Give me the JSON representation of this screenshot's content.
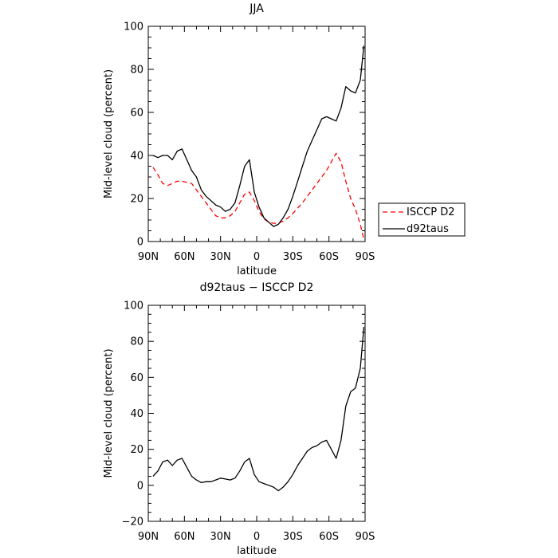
{
  "chart_data": [
    {
      "type": "line",
      "title": "JJA",
      "xlabel": "latitude",
      "ylabel": "Mid-level cloud (percent)",
      "xlim": [
        90,
        -90
      ],
      "ylim": [
        0,
        100
      ],
      "x_ticks": [
        90,
        60,
        30,
        0,
        -30,
        -60,
        -90
      ],
      "x_tick_labels": [
        "90N",
        "60N",
        "30N",
        "0",
        "30S",
        "60S",
        "90S"
      ],
      "y_ticks": [
        0,
        20,
        40,
        60,
        80,
        100
      ],
      "y_tick_labels": [
        "0",
        "20",
        "40",
        "60",
        "80",
        "100"
      ],
      "legend": "right",
      "series": [
        {
          "name": "ISCCP D2",
          "color": "#ff0000",
          "dash": "dashed",
          "x": [
            86,
            82,
            78,
            74,
            70,
            66,
            62,
            58,
            54,
            50,
            46,
            42,
            38,
            34,
            30,
            26,
            22,
            18,
            14,
            10,
            6,
            2,
            -2,
            -6,
            -10,
            -14,
            -18,
            -22,
            -26,
            -30,
            -34,
            -38,
            -42,
            -46,
            -50,
            -54,
            -58,
            -62,
            -66,
            -70,
            -74,
            -78,
            -82,
            -86,
            -89
          ],
          "values": [
            34.5,
            31,
            27,
            26,
            27,
            28,
            28,
            27.5,
            27,
            24,
            21,
            18,
            15,
            12,
            11,
            11,
            12,
            14,
            18,
            22,
            23,
            19,
            14,
            10.5,
            9,
            8.5,
            8.5,
            9.5,
            11,
            13,
            15.5,
            18,
            21,
            24,
            27,
            30,
            33,
            37,
            41,
            37,
            28,
            20,
            15,
            8,
            1
          ]
        },
        {
          "name": "d92taus",
          "color": "#000000",
          "dash": "solid",
          "x": [
            86,
            82,
            78,
            74,
            70,
            66,
            62,
            58,
            54,
            50,
            46,
            42,
            38,
            34,
            30,
            26,
            22,
            18,
            14,
            10,
            6,
            2,
            -2,
            -6,
            -10,
            -14,
            -18,
            -22,
            -26,
            -30,
            -34,
            -38,
            -42,
            -46,
            -50,
            -54,
            -58,
            -62,
            -66,
            -70,
            -74,
            -78,
            -82,
            -86,
            -89
          ],
          "values": [
            40,
            39,
            40,
            40,
            38,
            42,
            43,
            38,
            33,
            30,
            24,
            21,
            19,
            17,
            16,
            14,
            15,
            18,
            26,
            35,
            38,
            23,
            16,
            11,
            9,
            7,
            8,
            11,
            15,
            21,
            28,
            35,
            42,
            47,
            52,
            57,
            58,
            57,
            56,
            62,
            72,
            70,
            69,
            75,
            91
          ]
        }
      ]
    },
    {
      "type": "line",
      "title": "d92taus − ISCCP D2",
      "xlabel": "latitude",
      "ylabel": "Mid-level cloud (percent)",
      "xlim": [
        90,
        -90
      ],
      "ylim": [
        -20,
        100
      ],
      "x_ticks": [
        90,
        60,
        30,
        0,
        -30,
        -60,
        -90
      ],
      "x_tick_labels": [
        "90N",
        "60N",
        "30N",
        "0",
        "30S",
        "60S",
        "90S"
      ],
      "y_ticks": [
        -20,
        0,
        20,
        40,
        60,
        80,
        100
      ],
      "y_tick_labels": [
        "−20",
        "0",
        "20",
        "40",
        "60",
        "80",
        "100"
      ],
      "series": [
        {
          "color": "#000000",
          "dash": "solid",
          "x": [
            86,
            82,
            78,
            74,
            70,
            66,
            62,
            58,
            54,
            50,
            46,
            42,
            38,
            34,
            30,
            26,
            22,
            18,
            14,
            10,
            6,
            2,
            -2,
            -6,
            -10,
            -14,
            -18,
            -22,
            -26,
            -30,
            -34,
            -38,
            -42,
            -46,
            -50,
            -54,
            -58,
            -62,
            -66,
            -70,
            -74,
            -78,
            -82,
            -86,
            -89
          ],
          "values": [
            5,
            8,
            13,
            14,
            11,
            14,
            15,
            10,
            5,
            3,
            1.5,
            2,
            2,
            3,
            4,
            3.5,
            3,
            4,
            8,
            13,
            15,
            6,
            2,
            1,
            0,
            -1,
            -3,
            -1,
            2,
            6,
            11,
            15,
            19,
            21,
            22,
            24,
            25,
            20,
            15,
            25,
            44,
            52,
            54,
            65,
            88
          ]
        }
      ]
    }
  ]
}
